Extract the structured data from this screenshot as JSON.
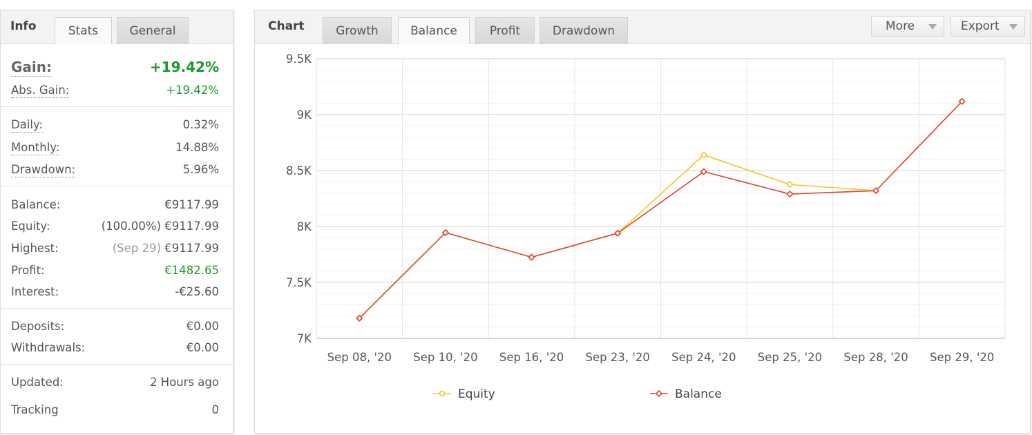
{
  "info_panel": {
    "tabs": [
      {
        "label": "Info",
        "active": false
      },
      {
        "label": "Stats",
        "active": true
      },
      {
        "label": "General",
        "active": false
      }
    ],
    "gain": {
      "label": "Gain:",
      "value": "+19.42%"
    },
    "abs_gain": {
      "label": "Abs. Gain:",
      "value": "+19.42%"
    },
    "daily": {
      "label": "Daily:",
      "value": "0.32%"
    },
    "monthly": {
      "label": "Monthly:",
      "value": "14.88%"
    },
    "drawdown": {
      "label": "Drawdown:",
      "value": "5.96%"
    },
    "balance": {
      "label": "Balance:",
      "value": "€9117.99"
    },
    "equity": {
      "label": "Equity:",
      "prefix": "(100.00%)",
      "value": "€9117.99"
    },
    "highest": {
      "label": "Highest:",
      "prefix": "(Sep 29)",
      "value": "€9117.99"
    },
    "profit": {
      "label": "Profit:",
      "value": "€1482.65"
    },
    "interest": {
      "label": "Interest:",
      "value": "-€25.60"
    },
    "deposits": {
      "label": "Deposits:",
      "value": "€0.00"
    },
    "withdrawals": {
      "label": "Withdrawals:",
      "value": "€0.00"
    },
    "updated": {
      "label": "Updated:",
      "value": "2 Hours ago"
    },
    "tracking": {
      "label": "Tracking",
      "value": "0"
    }
  },
  "chart_panel": {
    "title": "Chart",
    "tabs": [
      {
        "label": "Growth",
        "active": false
      },
      {
        "label": "Balance",
        "active": true
      },
      {
        "label": "Profit",
        "active": false
      },
      {
        "label": "Drawdown",
        "active": false
      }
    ],
    "more_label": "More",
    "export_label": "Export"
  },
  "chart_data": {
    "type": "line",
    "x": [
      "Sep 08, '20",
      "Sep 10, '20",
      "Sep 16, '20",
      "Sep 23, '20",
      "Sep 24, '20",
      "Sep 25, '20",
      "Sep 28, '20",
      "Sep 29, '20"
    ],
    "series": [
      {
        "name": "Equity",
        "color": "#f5c518",
        "values": [
          7180,
          7945,
          7725,
          7940,
          8640,
          8375,
          8320,
          9118
        ]
      },
      {
        "name": "Balance",
        "color": "#e0442c",
        "values": [
          7180,
          7945,
          7725,
          7940,
          8490,
          8290,
          8320,
          9118
        ]
      }
    ],
    "ylim": [
      7000,
      9500
    ],
    "y_ticks": [
      7000,
      7500,
      8000,
      8500,
      9000,
      9500
    ],
    "y_tick_labels": [
      "7K",
      "7.5K",
      "8K",
      "8.5K",
      "9K",
      "9.5K"
    ],
    "grid": true,
    "legend_position": "bottom"
  }
}
